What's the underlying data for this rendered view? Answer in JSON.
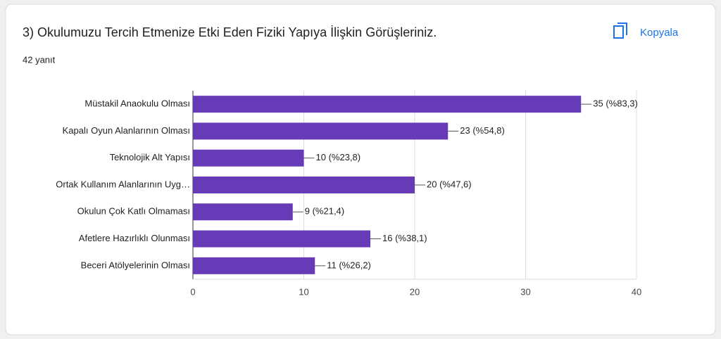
{
  "chart_data": {
    "type": "bar",
    "orientation": "horizontal",
    "title": "3) Okulumuzu Tercih Etmenize Etki Eden Fiziki Yapıya İlişkin Görüşleriniz.",
    "subtitle": "42 yanıt",
    "categories": [
      "Müstakil Anaokulu Olması",
      "Kapalı Oyun Alanlarının Olması",
      "Teknolojik Alt Yapısı",
      "Ortak Kullanım Alanlarının Uyg…",
      "Okulun Çok Katlı Olmaması",
      "Afetlere Hazırlıklı Olunması",
      "Beceri Atölyelerinin Olması"
    ],
    "values": [
      35,
      23,
      10,
      20,
      9,
      16,
      11
    ],
    "value_labels": [
      "35 (%83,3)",
      "23 (%54,8)",
      "10 (%23,8)",
      "20 (%47,6)",
      "9 (%21,4)",
      "16 (%38,1)",
      "11 (%26,2)"
    ],
    "color": "#673ab7",
    "xlim": [
      0,
      40
    ],
    "xticks": [
      0,
      10,
      20,
      30,
      40
    ],
    "grid": true
  },
  "actions": {
    "copy": "Kopyala"
  }
}
